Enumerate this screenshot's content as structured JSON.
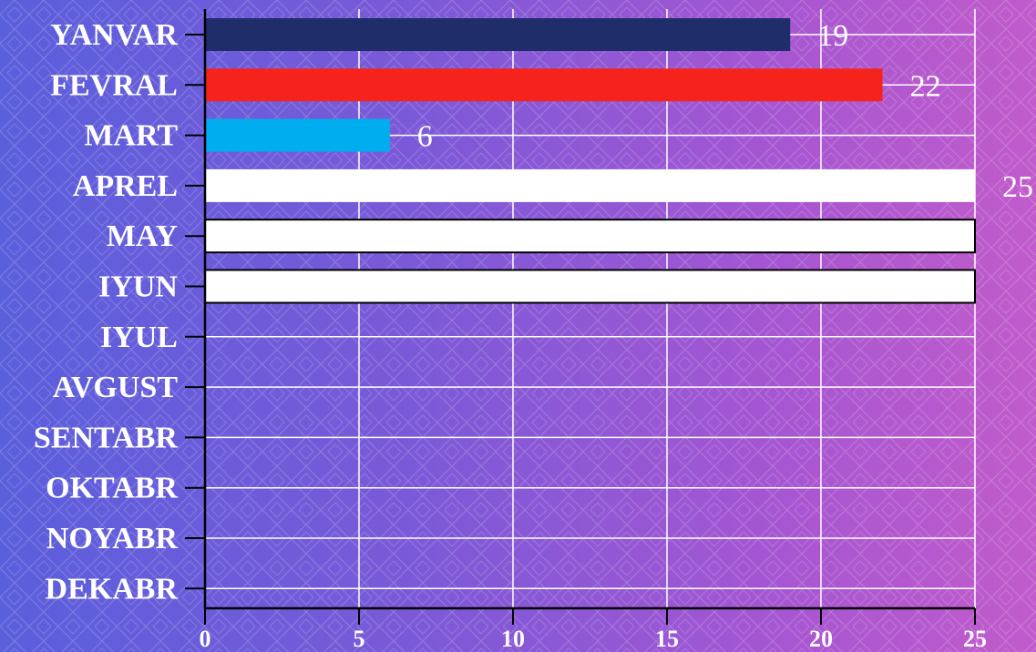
{
  "chart_data": {
    "type": "bar",
    "orientation": "horizontal",
    "title": "",
    "xlabel": "",
    "ylabel": "",
    "categories": [
      "YANVAR",
      "FEVRAL",
      "MART",
      "APREL",
      "MAY",
      "IYUN",
      "IYUL",
      "AVGUST",
      "SENTABR",
      "OKTABR",
      "NOYABR",
      "DEKABR"
    ],
    "values": [
      19,
      22,
      6,
      25,
      25,
      25,
      null,
      null,
      null,
      null,
      null,
      null
    ],
    "data_labels": [
      "19",
      "22",
      "6",
      "25",
      "",
      "",
      "",
      "",
      "",
      "",
      "",
      ""
    ],
    "bar_colors": [
      "#1f2d6b",
      "#f5231b",
      "#00aeef",
      "#ffffff",
      "#ffffff",
      "#ffffff",
      "",
      "",
      "",
      "",
      "",
      ""
    ],
    "bar_outlined": [
      false,
      false,
      false,
      false,
      true,
      true,
      false,
      false,
      false,
      false,
      false,
      false
    ],
    "xlim": [
      0,
      25
    ],
    "xticks": [
      "0",
      "5",
      "10",
      "15",
      "20",
      "25"
    ],
    "grid": true,
    "legend": "none",
    "colors": {
      "background_start": "#5a5fdc",
      "background_end": "#c15bcb",
      "grid": "#ffffff",
      "axis": "#000000",
      "text": "#ffffff"
    }
  }
}
